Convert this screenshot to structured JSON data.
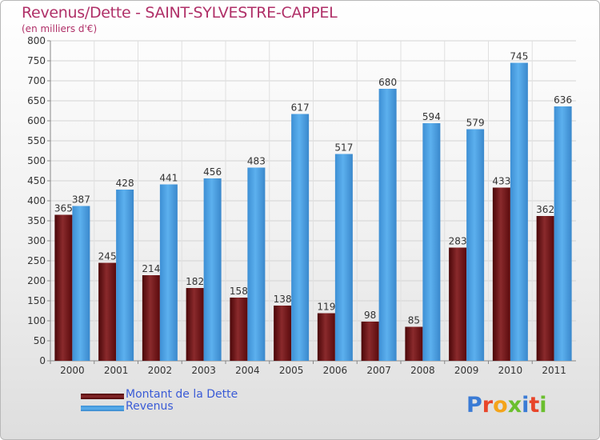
{
  "header": {
    "title": "Revenus/Dette - SAINT-SYLVESTRE-CAPPEL",
    "subtitle": "(en milliers d'€)"
  },
  "legend": {
    "items": [
      {
        "label": "Montant de la Dette",
        "color": "#6b0f10"
      },
      {
        "label": "Revenus",
        "color": "#4a9fe0"
      }
    ]
  },
  "logo": {
    "letters": [
      "P",
      "r",
      "o",
      "x",
      "i",
      "t",
      "i"
    ],
    "colors": [
      "#3a7bd5",
      "#e8452a",
      "#f4a41a",
      "#6abf2e",
      "#3a7bd5",
      "#e8452a",
      "#6abf2e"
    ]
  },
  "chart_data": {
    "type": "bar",
    "categories": [
      "2000",
      "2001",
      "2002",
      "2003",
      "2004",
      "2005",
      "2006",
      "2007",
      "2008",
      "2009",
      "2010",
      "2011"
    ],
    "series": [
      {
        "name": "Montant de la Dette",
        "values": [
          365,
          245,
          214,
          182,
          158,
          138,
          119,
          98,
          85,
          283,
          433,
          362
        ],
        "color": "#6b0f10"
      },
      {
        "name": "Revenus",
        "values": [
          387,
          428,
          441,
          456,
          483,
          617,
          517,
          680,
          594,
          579,
          745,
          636
        ],
        "color": "#4a9fe0"
      }
    ],
    "title": "Revenus/Dette - SAINT-SYLVESTRE-CAPPEL",
    "subtitle": "(en milliers d'€)",
    "ylim": [
      0,
      800
    ],
    "yticks": [
      0,
      50,
      100,
      150,
      200,
      250,
      300,
      350,
      400,
      450,
      500,
      550,
      600,
      650,
      700,
      750,
      800
    ],
    "grid": true,
    "legend_position": "bottom-left"
  }
}
